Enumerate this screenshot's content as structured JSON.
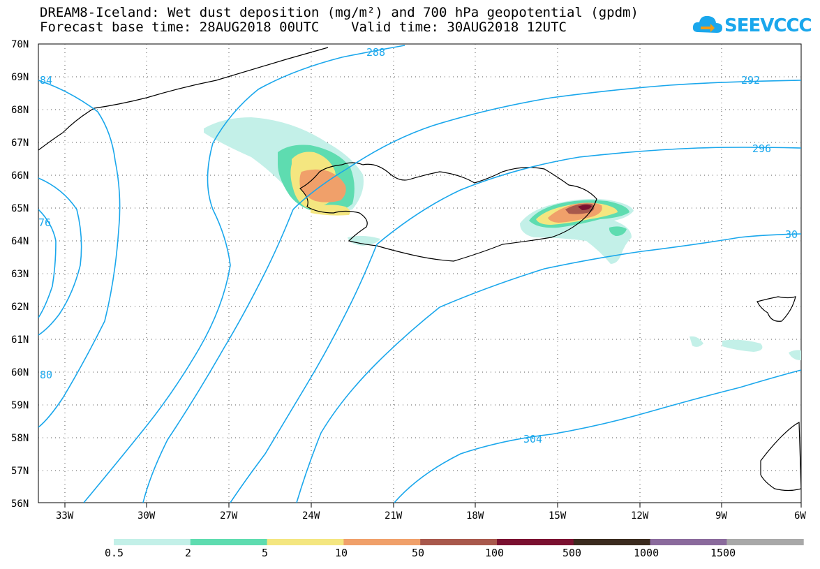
{
  "header": {
    "title_line1": "DREAM8-Iceland: Wet dust deposition (mg/m²) and 700 hPa geopotential (gpdm)",
    "title_line2": "Forecast base time: 28AUG2018 00UTC    Valid time: 30AUG2018 12UTC"
  },
  "logo": {
    "text": "SEEVCCC",
    "color": "#1aa7ec",
    "icon": "cloud-arrow-icon"
  },
  "map": {
    "lat_labels": [
      "70N",
      "69N",
      "68N",
      "67N",
      "66N",
      "65N",
      "64N",
      "63N",
      "62N",
      "61N",
      "60N",
      "59N",
      "58N",
      "57N",
      "56N"
    ],
    "lon_labels": [
      "33W",
      "30W",
      "27W",
      "24W",
      "21W",
      "18W",
      "15W",
      "12W",
      "9W",
      "6W"
    ],
    "contour_color": "#1aa7ec",
    "contour_labels": [
      "288",
      "292",
      "296",
      "30",
      "304",
      "84",
      "76",
      "80"
    ]
  },
  "legend": {
    "labels": [
      "0.5",
      "2",
      "5",
      "10",
      "50",
      "100",
      "500",
      "1000",
      "1500"
    ],
    "colors": [
      "#c3f0e8",
      "#5edcb0",
      "#f4e680",
      "#f0a06a",
      "#a8584c",
      "#7a1030",
      "#3a2a1e",
      "#8a6a9c",
      "#a8a8a8"
    ]
  }
}
